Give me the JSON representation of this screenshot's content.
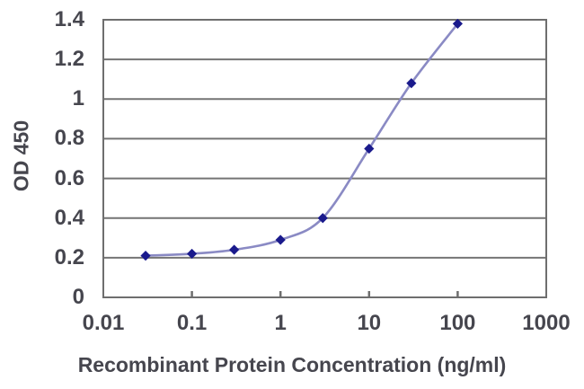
{
  "chart_data": {
    "type": "line",
    "title": "",
    "xlabel": "Recombinant Protein Concentration (ng/ml)",
    "ylabel": "OD 450",
    "x_scale": "log",
    "xlim": [
      0.01,
      1000
    ],
    "ylim": [
      0,
      1.4
    ],
    "x_ticks": [
      0.01,
      0.1,
      1,
      10,
      100,
      1000
    ],
    "x_tick_labels": [
      "0.01",
      "0.1",
      "1",
      "10",
      "100",
      "1000"
    ],
    "y_ticks": [
      0,
      0.2,
      0.4,
      0.6,
      0.8,
      1.0,
      1.2,
      1.4
    ],
    "y_tick_labels": [
      "0",
      "0.2",
      "0.4",
      "0.6",
      "0.8",
      "1",
      "1.2",
      "1.4"
    ],
    "grid": "horizontal",
    "legend": "none",
    "marker_style": "diamond",
    "series": [
      {
        "name": "OD 450",
        "x": [
          0.03,
          0.1,
          0.3,
          1,
          3,
          10,
          30,
          100
        ],
        "y": [
          0.21,
          0.22,
          0.24,
          0.29,
          0.4,
          0.75,
          1.08,
          1.38
        ]
      }
    ],
    "colors": {
      "line": "#8a8ac4",
      "marker": "#1a1a8c",
      "gridline": "#747474",
      "border": "#6e6e6e",
      "text": "#46464e",
      "background": "#ffffff"
    }
  }
}
